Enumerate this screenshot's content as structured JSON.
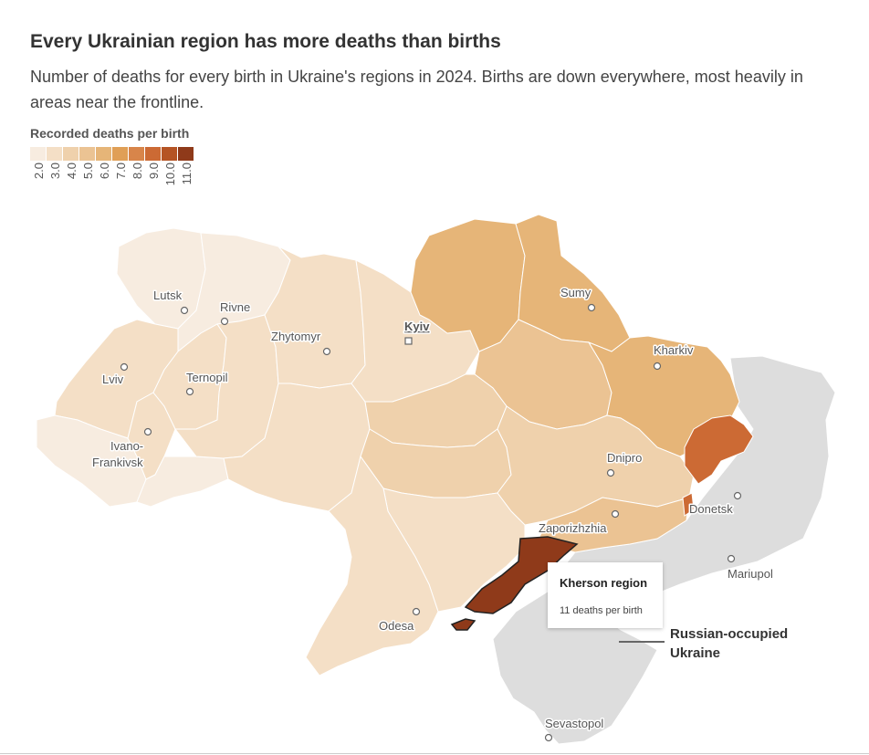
{
  "title": "Every Ukrainian region has more deaths than births",
  "subtitle": "Number of deaths for every birth in Ukraine's regions in 2024. Births are down everywhere, most heavily in areas near the frontline.",
  "legend": {
    "title": "Recorded deaths per birth",
    "ticks": [
      "2.0",
      "3.0",
      "4.0",
      "5.0",
      "6.0",
      "7.0",
      "8.0",
      "9.0",
      "10.0",
      "11.0"
    ],
    "colors": [
      "#f7ece0",
      "#f4dfc6",
      "#efd1ac",
      "#ebc393",
      "#e6b578",
      "#e09f56",
      "#d8854a",
      "#cc6a34",
      "#b55424",
      "#8f3a1a"
    ]
  },
  "colors": {
    "occupied": "#dddddd",
    "highlight": "#8f3a1a",
    "border": "#ffffff"
  },
  "cities": [
    {
      "name": "Lutsk",
      "capital": false
    },
    {
      "name": "Rivne",
      "capital": false
    },
    {
      "name": "Zhytomyr",
      "capital": false
    },
    {
      "name": "Kyiv",
      "capital": true
    },
    {
      "name": "Sumy",
      "capital": false
    },
    {
      "name": "Kharkiv",
      "capital": false
    },
    {
      "name": "Lviv",
      "capital": false
    },
    {
      "name": "Ternopil",
      "capital": false
    },
    {
      "name": "Ivano-",
      "capital": false
    },
    {
      "name": "Frankivsk",
      "capital": false
    },
    {
      "name": "Dnipro",
      "capital": false
    },
    {
      "name": "Donetsk",
      "capital": false
    },
    {
      "name": "Zaporizhzhia",
      "capital": false
    },
    {
      "name": "Mariupol",
      "capital": false
    },
    {
      "name": "Odesa",
      "capital": false
    },
    {
      "name": "Sevastopol",
      "capital": false
    }
  ],
  "tooltip": {
    "title": "Kherson region",
    "value": "11 deaths per birth"
  },
  "annotation": {
    "line1": "Russian-",
    "line1b": "occupied",
    "line2": "Ukraine"
  }
}
